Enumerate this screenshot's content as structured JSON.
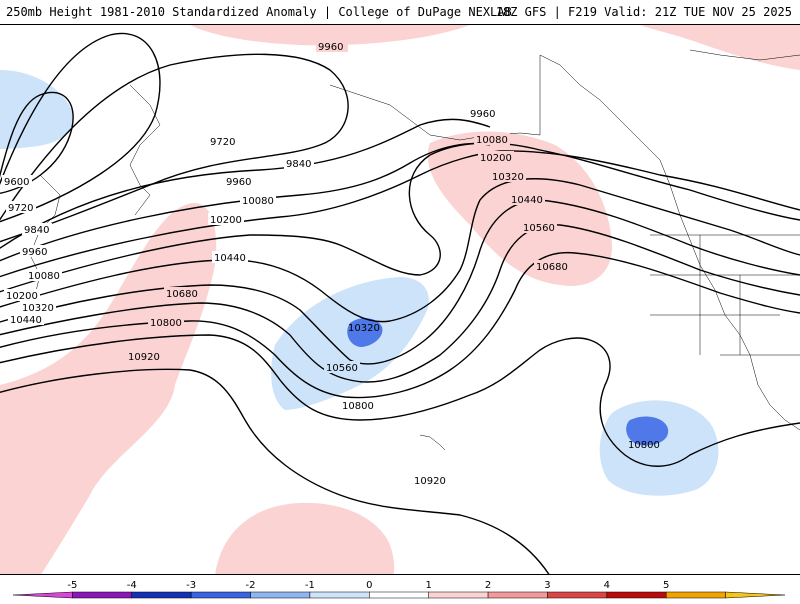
{
  "header": {
    "left_title": "250mb Height 1981-2010 Standardized Anomaly | College of DuPage NEXLAB",
    "right_title": "18Z GFS | F219 Valid: 21Z TUE NOV 25 2025"
  },
  "contour_labels": [
    {
      "text": "9960"
    },
    {
      "text": "9720"
    },
    {
      "text": "9840"
    },
    {
      "text": "9960"
    },
    {
      "text": "10080"
    },
    {
      "text": "9600"
    },
    {
      "text": "9720"
    },
    {
      "text": "9840"
    },
    {
      "text": "9960"
    },
    {
      "text": "10080"
    },
    {
      "text": "10200"
    },
    {
      "text": "10320"
    },
    {
      "text": "10440"
    },
    {
      "text": "10200"
    },
    {
      "text": "10440"
    },
    {
      "text": "10680"
    },
    {
      "text": "10800"
    },
    {
      "text": "10920"
    },
    {
      "text": "10320"
    },
    {
      "text": "10560"
    },
    {
      "text": "10800"
    },
    {
      "text": "9960"
    },
    {
      "text": "10080"
    },
    {
      "text": "10200"
    },
    {
      "text": "10320"
    },
    {
      "text": "10440"
    },
    {
      "text": "10560"
    },
    {
      "text": "10680"
    },
    {
      "text": "10800"
    },
    {
      "text": "10920"
    }
  ],
  "colorbar": {
    "ticks": [
      "-5",
      "-4",
      "-3",
      "-2",
      "-1",
      "0",
      "1",
      "2",
      "3",
      "4",
      "5"
    ],
    "colors": [
      "#d945d9",
      "#8a18b8",
      "#1432b4",
      "#3b64e0",
      "#8fb4f0",
      "#cde3fa",
      "#ffffff",
      "#fbd2d2",
      "#f19a9a",
      "#d94646",
      "#b80c0c",
      "#f2a200",
      "#f5c518"
    ]
  },
  "colors": {
    "positive_anomaly": "#fbd3d3",
    "negative_anomaly": "#cde3fa",
    "strong_negative": "#4f79e8",
    "contour": "#000000"
  }
}
